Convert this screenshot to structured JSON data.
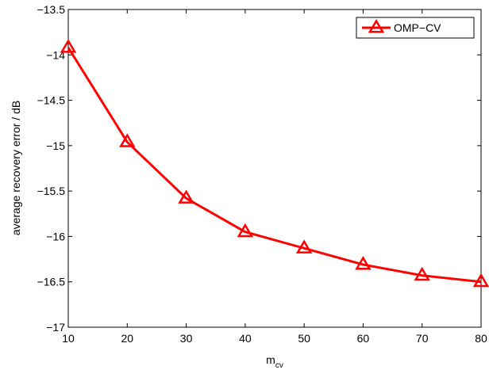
{
  "chart_data": {
    "type": "line",
    "title": "",
    "xlabel": "m",
    "xlabel_sub": "cv",
    "ylabel": "average recovery error / dB",
    "xlim": [
      10,
      80
    ],
    "ylim": [
      -17,
      -13.5
    ],
    "xticks": [
      10,
      20,
      30,
      40,
      50,
      60,
      70,
      80
    ],
    "yticks": [
      -13.5,
      -14,
      -14.5,
      -15,
      -15.5,
      -16,
      -16.5,
      -17
    ],
    "ytick_labels": [
      "−13.5",
      "−14",
      "−14.5",
      "−15",
      "−15.5",
      "−16",
      "−16.5",
      "−17"
    ],
    "grid": false,
    "legend_position": "top-right",
    "series": [
      {
        "name": "OMP−CV",
        "color": "#ff0000",
        "marker": "triangle",
        "x": [
          10,
          20,
          30,
          40,
          50,
          60,
          70,
          80
        ],
        "y": [
          -13.92,
          -14.96,
          -15.58,
          -15.95,
          -16.13,
          -16.31,
          -16.43,
          -16.5
        ]
      }
    ]
  }
}
